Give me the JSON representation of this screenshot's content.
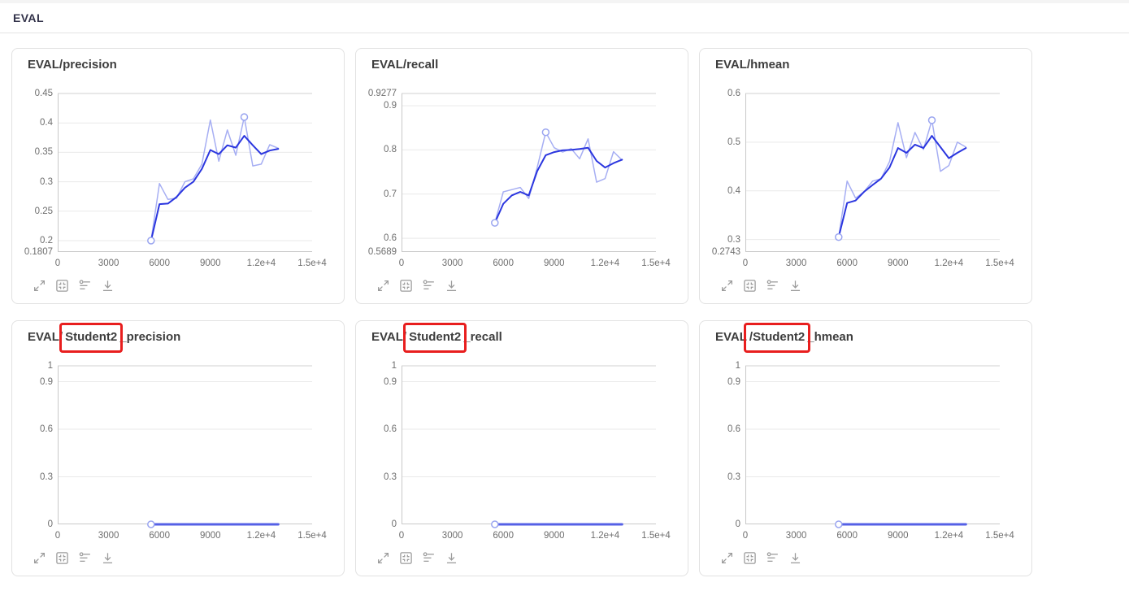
{
  "header": {
    "title": "EVAL"
  },
  "colors": {
    "raw_line": "#a6aef3",
    "smooth_line": "#2b36df",
    "flat_line": "#5560e6",
    "marker_stroke": "#9aa5f0",
    "marker_fill": "#ffffff",
    "red_box": "#e81e1e",
    "gridline": "#e9e9e9",
    "top_gridline": "#d2d2d2",
    "axis_line": "#c9c9c9",
    "tick_text": "#6e6e6e"
  },
  "toolbar": {
    "icons": [
      {
        "name": "maximize"
      },
      {
        "name": "restore-size"
      },
      {
        "name": "axis-settings"
      },
      {
        "name": "download"
      }
    ]
  },
  "x_axis": {
    "min": 0,
    "max": 15000,
    "ticks": [
      {
        "v": 0,
        "label": "0"
      },
      {
        "v": 3000,
        "label": "3000"
      },
      {
        "v": 6000,
        "label": "6000"
      },
      {
        "v": 9000,
        "label": "9000"
      },
      {
        "v": 12000,
        "label": "1.2e+4"
      },
      {
        "v": 15000,
        "label": "1.5e+4"
      }
    ]
  },
  "charts": [
    {
      "type": "line",
      "title": {
        "pre": "EVAL/",
        "box": "",
        "post": "precision",
        "full": "EVAL/precision"
      },
      "y_axis": {
        "min": 0.1807,
        "max": 0.45,
        "min_label": "0.1807",
        "ticks": [
          {
            "v": 0.45,
            "label": "0.45"
          },
          {
            "v": 0.4,
            "label": "0.4"
          },
          {
            "v": 0.35,
            "label": "0.35"
          },
          {
            "v": 0.3,
            "label": "0.3"
          },
          {
            "v": 0.25,
            "label": "0.25"
          },
          {
            "v": 0.2,
            "label": "0.2"
          }
        ]
      },
      "steps": [
        5500,
        6000,
        6500,
        7000,
        7500,
        8000,
        8500,
        9000,
        9500,
        10000,
        10500,
        11000,
        11500,
        12000,
        12500,
        13000
      ],
      "series": [
        {
          "name": "raw",
          "color_key": "raw_line",
          "width": 1.5,
          "values": [
            0.2,
            0.297,
            0.27,
            0.272,
            0.3,
            0.305,
            0.33,
            0.405,
            0.335,
            0.388,
            0.345,
            0.41,
            0.327,
            0.33,
            0.363,
            0.357
          ]
        },
        {
          "name": "smoothed",
          "color_key": "smooth_line",
          "width": 2,
          "values": [
            0.2,
            0.262,
            0.263,
            0.274,
            0.29,
            0.3,
            0.322,
            0.354,
            0.347,
            0.362,
            0.358,
            0.378,
            0.362,
            0.347,
            0.353,
            0.356
          ]
        }
      ],
      "markers": [
        {
          "x": 5500,
          "y": 0.2
        },
        {
          "x": 11000,
          "y": 0.41
        }
      ]
    },
    {
      "type": "line",
      "title": {
        "pre": "EVAL/",
        "box": "",
        "post": "recall",
        "full": "EVAL/recall"
      },
      "y_axis": {
        "min": 0.5689,
        "max": 0.9277,
        "min_label": "0.5689",
        "ticks": [
          {
            "v": 0.9277,
            "label": "0.9277"
          },
          {
            "v": 0.9,
            "label": "0.9"
          },
          {
            "v": 0.8,
            "label": "0.8"
          },
          {
            "v": 0.7,
            "label": "0.7"
          },
          {
            "v": 0.6,
            "label": "0.6"
          }
        ]
      },
      "steps": [
        5500,
        6000,
        6500,
        7000,
        7500,
        8000,
        8500,
        9000,
        9500,
        10000,
        10500,
        11000,
        11500,
        12000,
        12500,
        13000
      ],
      "series": [
        {
          "name": "raw",
          "color_key": "raw_line",
          "width": 1.5,
          "values": [
            0.635,
            0.705,
            0.71,
            0.715,
            0.69,
            0.76,
            0.84,
            0.805,
            0.795,
            0.803,
            0.78,
            0.825,
            0.727,
            0.735,
            0.796,
            0.777
          ]
        },
        {
          "name": "smoothed",
          "color_key": "smooth_line",
          "width": 2,
          "values": [
            0.635,
            0.678,
            0.697,
            0.705,
            0.697,
            0.752,
            0.788,
            0.795,
            0.799,
            0.8,
            0.802,
            0.805,
            0.775,
            0.76,
            0.77,
            0.778
          ]
        }
      ],
      "markers": [
        {
          "x": 5500,
          "y": 0.635
        },
        {
          "x": 8500,
          "y": 0.84
        }
      ]
    },
    {
      "type": "line",
      "title": {
        "pre": "EVAL/",
        "box": "",
        "post": "hmean",
        "full": "EVAL/hmean"
      },
      "y_axis": {
        "min": 0.2743,
        "max": 0.6,
        "min_label": "0.2743",
        "ticks": [
          {
            "v": 0.6,
            "label": "0.6"
          },
          {
            "v": 0.5,
            "label": "0.5"
          },
          {
            "v": 0.4,
            "label": "0.4"
          },
          {
            "v": 0.3,
            "label": "0.3"
          }
        ]
      },
      "steps": [
        5500,
        6000,
        6500,
        7000,
        7500,
        8000,
        8500,
        9000,
        9500,
        10000,
        10500,
        11000,
        11500,
        12000,
        12500,
        13000
      ],
      "series": [
        {
          "name": "raw",
          "color_key": "raw_line",
          "width": 1.5,
          "values": [
            0.305,
            0.42,
            0.385,
            0.398,
            0.42,
            0.425,
            0.46,
            0.54,
            0.468,
            0.52,
            0.485,
            0.545,
            0.44,
            0.452,
            0.5,
            0.49
          ]
        },
        {
          "name": "smoothed",
          "color_key": "smooth_line",
          "width": 2,
          "values": [
            0.305,
            0.375,
            0.38,
            0.398,
            0.412,
            0.425,
            0.448,
            0.488,
            0.478,
            0.495,
            0.488,
            0.513,
            0.49,
            0.467,
            0.478,
            0.488
          ]
        }
      ],
      "markers": [
        {
          "x": 5500,
          "y": 0.305
        },
        {
          "x": 11000,
          "y": 0.545
        }
      ]
    },
    {
      "type": "line",
      "title": {
        "pre": "EVAL/",
        "box": "Student2",
        "post": "_precision",
        "full": "EVAL/Student2_precision"
      },
      "y_axis": {
        "min": 0,
        "max": 1,
        "min_label": "0",
        "ticks": [
          {
            "v": 1,
            "label": "1"
          },
          {
            "v": 0.9,
            "label": "0.9"
          },
          {
            "v": 0.6,
            "label": "0.6"
          },
          {
            "v": 0.3,
            "label": "0.3"
          }
        ]
      },
      "steps": [
        5500,
        13000
      ],
      "series": [
        {
          "name": "value",
          "color_key": "flat_line",
          "width": 3,
          "values": [
            0,
            0
          ]
        }
      ],
      "markers": [
        {
          "x": 5500,
          "y": 0
        }
      ]
    },
    {
      "type": "line",
      "title": {
        "pre": "EVAL/",
        "box": "Student2",
        "post": "_recall",
        "full": "EVAL/Student2_recall"
      },
      "y_axis": {
        "min": 0,
        "max": 1,
        "min_label": "0",
        "ticks": [
          {
            "v": 1,
            "label": "1"
          },
          {
            "v": 0.9,
            "label": "0.9"
          },
          {
            "v": 0.6,
            "label": "0.6"
          },
          {
            "v": 0.3,
            "label": "0.3"
          }
        ]
      },
      "steps": [
        5500,
        13000
      ],
      "series": [
        {
          "name": "value",
          "color_key": "flat_line",
          "width": 3,
          "values": [
            0,
            0
          ]
        }
      ],
      "markers": [
        {
          "x": 5500,
          "y": 0
        }
      ]
    },
    {
      "type": "line",
      "title": {
        "pre": "EVAL",
        "box": "/Student2",
        "post": "_hmean",
        "full": "EVAL/Student2_hmean"
      },
      "y_axis": {
        "min": 0,
        "max": 1,
        "min_label": "0",
        "ticks": [
          {
            "v": 1,
            "label": "1"
          },
          {
            "v": 0.9,
            "label": "0.9"
          },
          {
            "v": 0.6,
            "label": "0.6"
          },
          {
            "v": 0.3,
            "label": "0.3"
          }
        ]
      },
      "steps": [
        5500,
        13000
      ],
      "series": [
        {
          "name": "value",
          "color_key": "flat_line",
          "width": 3,
          "values": [
            0,
            0
          ]
        }
      ],
      "markers": [
        {
          "x": 5500,
          "y": 0
        }
      ]
    }
  ]
}
